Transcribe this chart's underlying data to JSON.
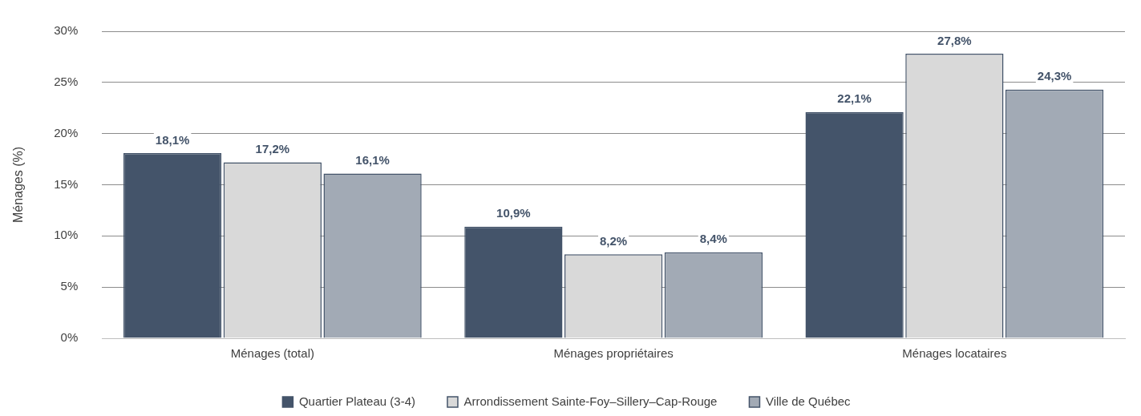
{
  "chart_data": {
    "type": "bar",
    "ylabel": "Ménages (%)",
    "categories": [
      "Ménages (total)",
      "Ménages propriétaires",
      "Ménages locataires"
    ],
    "series": [
      {
        "name": "Quartier Plateau (3-4)",
        "color": "#44546a",
        "values": [
          18.1,
          10.9,
          22.1
        ],
        "value_labels": [
          "18,1%",
          "10,9%",
          "22,1%"
        ]
      },
      {
        "name": "Arrondissement Sainte-Foy–Sillery–Cap-Rouge",
        "color": "#d9d9d9",
        "values": [
          17.2,
          8.2,
          27.8
        ],
        "value_labels": [
          "17,2%",
          "8,2%",
          "27,8%"
        ]
      },
      {
        "name": "Ville de Québec",
        "color": "#a2aab5",
        "values": [
          16.1,
          8.4,
          24.3
        ],
        "value_labels": [
          "16,1%",
          "8,4%",
          "24,3%"
        ]
      }
    ],
    "ylim": [
      0,
      30
    ],
    "yticks": [
      {
        "value": 0,
        "label": "0%"
      },
      {
        "value": 5,
        "label": "5%"
      },
      {
        "value": 10,
        "label": "10%"
      },
      {
        "value": 15,
        "label": "15%"
      },
      {
        "value": 20,
        "label": "20%"
      },
      {
        "value": 25,
        "label": "25%"
      },
      {
        "value": 30,
        "label": "30%"
      }
    ],
    "grid": "y",
    "legend": "bottom"
  }
}
